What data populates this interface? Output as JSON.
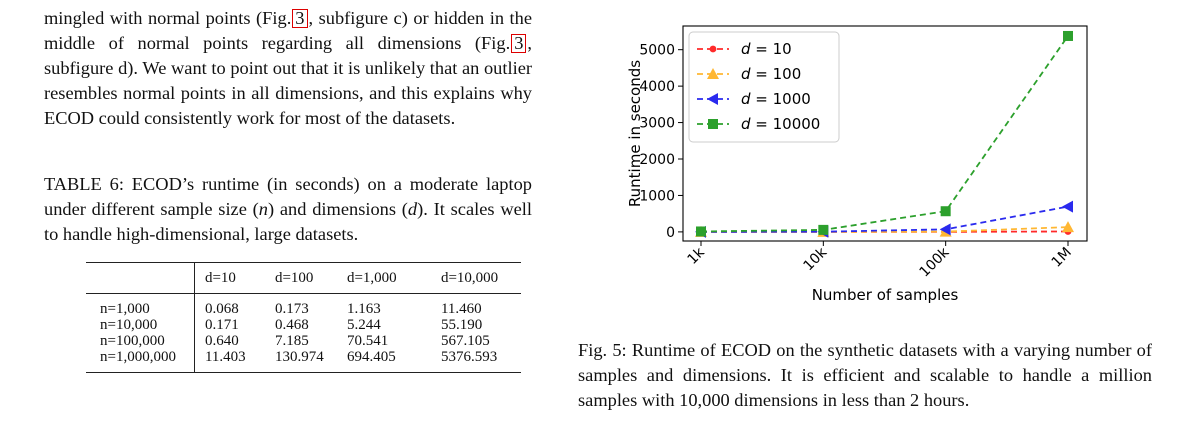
{
  "paragraph": {
    "t1": "mingled with normal points (Fig.",
    "ref1": "3",
    "t2": ", subfigure c) or hidden in the middle of normal points regarding all dimensions (Fig.",
    "ref2": "3",
    "t3": ", subfigure d). We want to point out that it is unlikely that an outlier resembles normal points in all dimensions, and this explains why ECOD could consistently work for most of the datasets."
  },
  "table_caption": {
    "t1": "TABLE 6: ECOD’s runtime (in seconds) on a moderate laptop under different sample size (",
    "n": "n",
    "t2": ") and dimensions (",
    "d": "d",
    "t3": "). It scales well to handle high-dimensional, large datasets."
  },
  "table": {
    "headers": [
      "",
      "d=10",
      "d=100",
      "d=1,000",
      "d=10,000"
    ],
    "rows": [
      [
        "n=1,000",
        "0.068",
        "0.173",
        "1.163",
        "11.460"
      ],
      [
        "n=10,000",
        "0.171",
        "0.468",
        "5.244",
        "55.190"
      ],
      [
        "n=100,000",
        "0.640",
        "7.185",
        "70.541",
        "567.105"
      ],
      [
        "n=1,000,000",
        "11.403",
        "130.974",
        "694.405",
        "5376.593"
      ]
    ]
  },
  "figure_caption": "Fig. 5: Runtime of ECOD on the synthetic datasets with a varying number of samples and dimensions. It is efficient and scalable to handle a million samples with 10,000 dimensions in less than 2 hours.",
  "chart_data": {
    "type": "line",
    "categories": [
      "1k",
      "10k",
      "100k",
      "1M"
    ],
    "xlabel": "Number of samples",
    "ylabel": "Runtime in seconds",
    "ylim": [
      -250,
      5650
    ],
    "yticks": [
      0,
      1000,
      2000,
      3000,
      4000,
      5000
    ],
    "legend_position": "top-left",
    "series": [
      {
        "name": "d = 10",
        "var": "d",
        "val": "10",
        "values": [
          0.068,
          0.171,
          0.64,
          11.403
        ],
        "color": "#ff2a2a",
        "marker": "circle"
      },
      {
        "name": "d = 100",
        "var": "d",
        "val": "100",
        "values": [
          0.173,
          0.468,
          7.185,
          130.974
        ],
        "color": "#ffb733",
        "marker": "triangle-up"
      },
      {
        "name": "d = 1000",
        "var": "d",
        "val": "1000",
        "values": [
          1.163,
          5.244,
          70.541,
          694.405
        ],
        "color": "#2a2aee",
        "marker": "triangle-left"
      },
      {
        "name": "d = 10000",
        "var": "d",
        "val": "10000",
        "values": [
          11.46,
          55.19,
          567.105,
          5376.593
        ],
        "color": "#2ca02c",
        "marker": "square"
      }
    ]
  }
}
